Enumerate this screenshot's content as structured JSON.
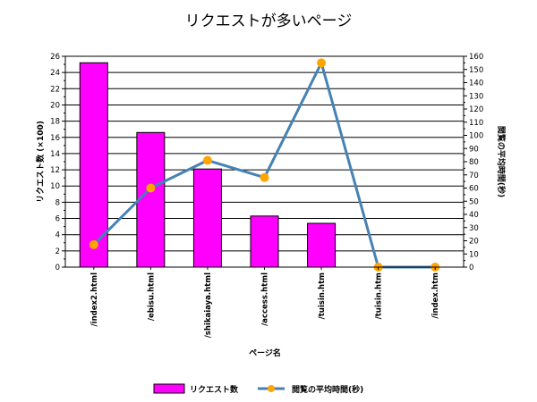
{
  "chart_data": {
    "type": "bar",
    "title": "リクエストが多いページ",
    "xlabel": "ページ名",
    "categories": [
      "/index2.html",
      "/ebisu.html",
      "/shikaiaya.html",
      "/access.html",
      "/tuisin.htm",
      "/tuisin.htm",
      "/index.htm"
    ],
    "series": [
      {
        "name": "リクエスト数",
        "type": "bar",
        "axis": "left",
        "color": "#ff00ff",
        "values": [
          25.2,
          16.6,
          12.1,
          6.3,
          5.4,
          0,
          0
        ]
      },
      {
        "name": "閲覧の平均時間(秒)",
        "type": "line",
        "axis": "right",
        "color": "#4682b4",
        "marker_color": "#ffa500",
        "values": [
          17,
          60,
          81,
          68,
          155,
          0,
          0
        ]
      }
    ],
    "y_left": {
      "label": "リクエスト数 (×100)",
      "min": 0,
      "max": 26,
      "step": 2
    },
    "y_right": {
      "label": "閲覧の平均時間(秒)",
      "min": 0,
      "max": 160,
      "step": 10
    },
    "grid": true,
    "legend_position": "bottom"
  }
}
